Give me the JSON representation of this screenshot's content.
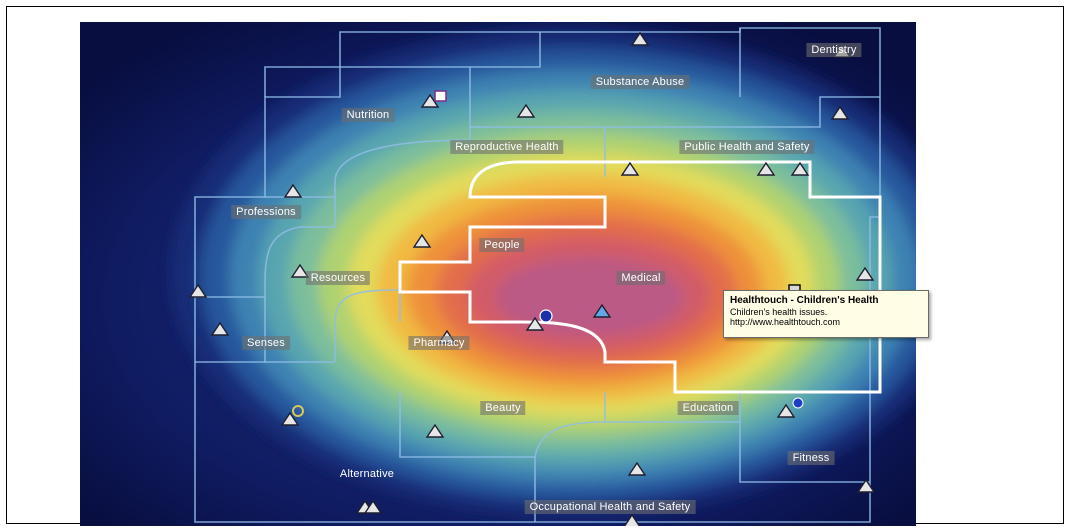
{
  "map": {
    "regions": [
      {
        "id": "dentistry",
        "label": "Dentistry"
      },
      {
        "id": "substance-abuse",
        "label": "Substance Abuse"
      },
      {
        "id": "nutrition",
        "label": "Nutrition"
      },
      {
        "id": "reproductive-health",
        "label": "Reproductive Health"
      },
      {
        "id": "public-health-and-safety",
        "label": "Public Health and Safety"
      },
      {
        "id": "professions",
        "label": "Professions"
      },
      {
        "id": "people",
        "label": "People"
      },
      {
        "id": "resources",
        "label": "Resources"
      },
      {
        "id": "medical",
        "label": "Medical"
      },
      {
        "id": "senses",
        "label": "Senses"
      },
      {
        "id": "pharmacy",
        "label": "Pharmacy"
      },
      {
        "id": "beauty",
        "label": "Beauty"
      },
      {
        "id": "education",
        "label": "Education"
      },
      {
        "id": "fitness",
        "label": "Fitness"
      },
      {
        "id": "alternative",
        "label": "Alternative"
      },
      {
        "id": "occupational-health-and-safety",
        "label": "Occupational Health and Safety"
      }
    ],
    "selected_region": "Medical",
    "colors": {
      "background_outer": "#0a1250",
      "contour_ramp": [
        "#1b2f7a",
        "#2a5aa0",
        "#3f86b4",
        "#5aa8b0",
        "#7fc09a",
        "#b3d46e",
        "#e6dc5a",
        "#f2b640",
        "#ee8c3a",
        "#e16a4e",
        "#d05a6a",
        "#b85a88"
      ],
      "boundary_line": "#8fbde8",
      "selection_outline": "#ffffff",
      "marker_fill": "#e6e6e6",
      "marker_fill_highlight": "#62a8e6"
    }
  },
  "tooltip": {
    "title": "Healthtouch - Children's Health",
    "description": "Children's health issues.",
    "url": "http://www.healthtouch.com"
  }
}
